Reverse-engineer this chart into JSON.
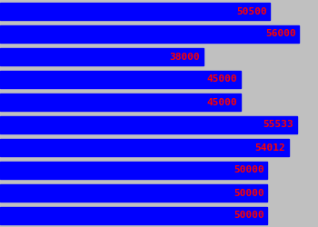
{
  "values": [
    50500,
    56000,
    38000,
    45000,
    45000,
    55533,
    54012,
    50000,
    50000,
    50000
  ],
  "bar_color": "#0000ff",
  "label_color": "#ff0000",
  "background_color": "#c0c0c0",
  "max_value": 59500,
  "label_fontsize": 8,
  "label_fontfamily": "monospace",
  "figwidth": 3.5,
  "figheight": 2.5,
  "dpi": 100
}
